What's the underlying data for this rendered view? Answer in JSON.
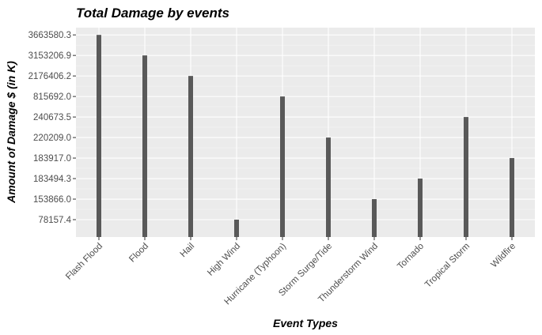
{
  "chart_data": {
    "type": "bar",
    "title": "Total Damage by events",
    "xlabel": "Event Types",
    "ylabel": "Amount of Damage $ (in K)",
    "categories": [
      "Flash Flood",
      "Flood",
      "Hail",
      "High Wind",
      "Hurricane (Typhoon)",
      "Storm Surge/Tide",
      "Thunderstorm Wind",
      "Tornado",
      "Tropical Storm",
      "Wildfire"
    ],
    "values": [
      "3663580.3",
      "3153206.9",
      "2176406.2",
      "78157.4",
      "815692.0",
      "220209.0",
      "153866.0",
      "183494.3",
      "240673.5",
      "183917.0"
    ],
    "y_ticks": [
      "78157.4",
      "153866.0",
      "183494.3",
      "183917.0",
      "220209.0",
      "240673.5",
      "815692.0",
      "2176406.2",
      "3153206.9",
      "3663580.3"
    ],
    "y_scale": "discrete (values sorted as text labels)",
    "grid": true,
    "panel_color": "#ebebeb",
    "bar_color": "#595959"
  }
}
